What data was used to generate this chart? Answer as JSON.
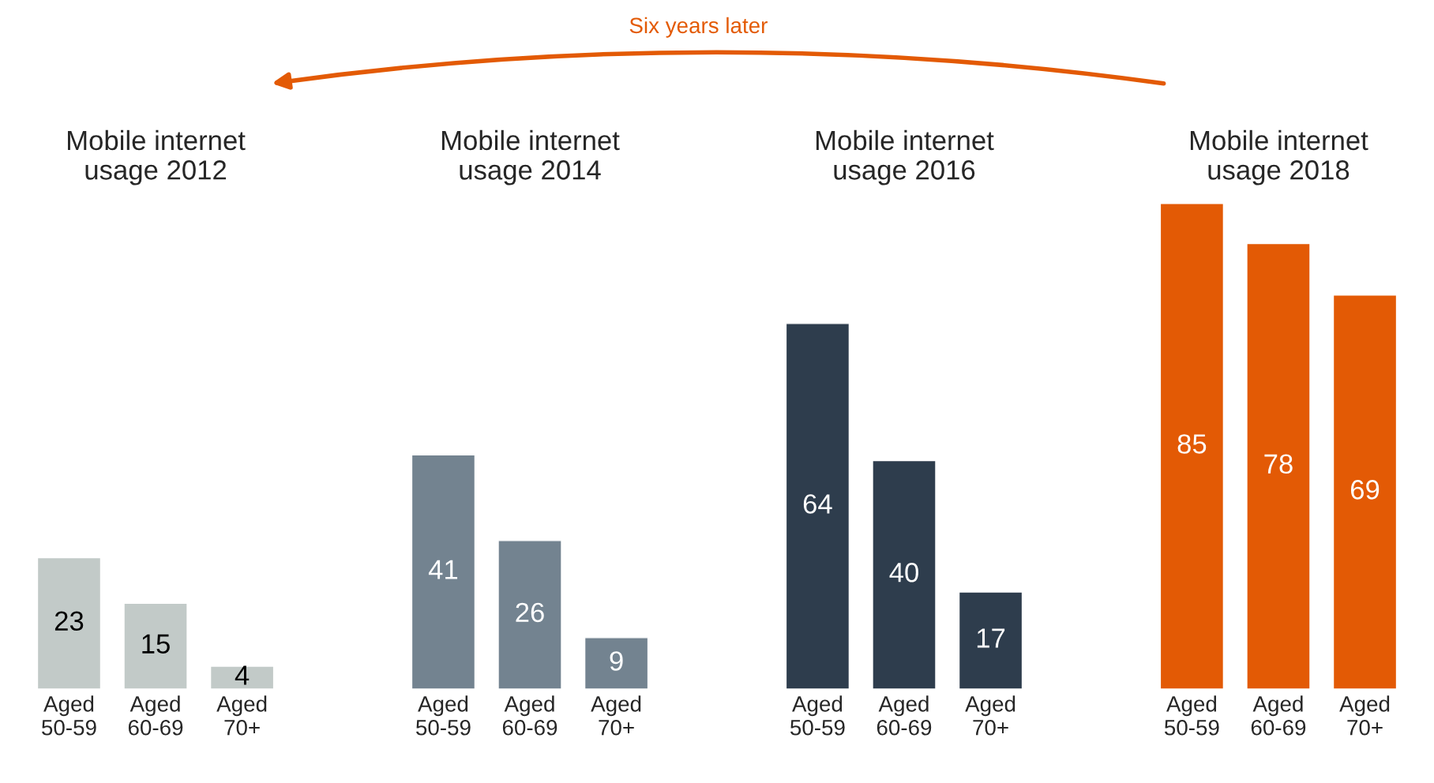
{
  "chart_data": [
    {
      "type": "bar",
      "title": "Mobile internet\nusage 2012",
      "categories": [
        "Aged\n50-59",
        "Aged\n60-69",
        "Aged\n70+"
      ],
      "values": [
        23,
        15,
        4
      ],
      "color": "#c2cac8",
      "data_labels": true,
      "annotations": [
        "Six years later"
      ]
    },
    {
      "type": "bar",
      "title": "Mobile internet\nusage 2014",
      "categories": [
        "Aged\n50-59",
        "Aged\n60-69",
        "Aged\n70+"
      ],
      "values": [
        41,
        26,
        9
      ],
      "color": "#738390",
      "data_labels": true
    },
    {
      "type": "bar",
      "title": "Mobile internet\nusage 2016",
      "categories": [
        "Aged\n50-59",
        "Aged\n60-69",
        "Aged\n70+"
      ],
      "values": [
        64,
        40,
        17
      ],
      "color": "#2e3d4d",
      "data_labels": true
    },
    {
      "type": "bar",
      "title": "Mobile internet\nusage 2018",
      "categories": [
        "Aged\n50-59",
        "Aged\n60-69",
        "Aged\n70+"
      ],
      "values": [
        85,
        78,
        69
      ],
      "color": "#e35a05",
      "data_labels": true
    }
  ]
}
